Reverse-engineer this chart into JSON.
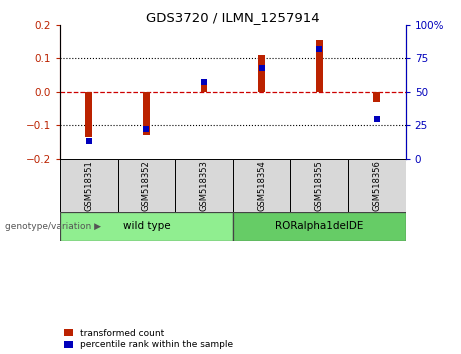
{
  "title": "GDS3720 / ILMN_1257914",
  "samples": [
    "GSM518351",
    "GSM518352",
    "GSM518353",
    "GSM518354",
    "GSM518355",
    "GSM518356"
  ],
  "transformed_count": [
    -0.135,
    -0.13,
    0.025,
    0.11,
    0.155,
    -0.03
  ],
  "percentile_rank": [
    13,
    22,
    57,
    68,
    82,
    30
  ],
  "groups": [
    {
      "label": "wild type",
      "indices": [
        0,
        1,
        2
      ],
      "color": "#90ee90"
    },
    {
      "label": "RORalpha1delDE",
      "indices": [
        3,
        4,
        5
      ],
      "color": "#66cc66"
    }
  ],
  "ylim_left": [
    -0.2,
    0.2
  ],
  "ylim_right": [
    0,
    100
  ],
  "yticks_left": [
    -0.2,
    -0.1,
    0.0,
    0.1,
    0.2
  ],
  "yticks_right": [
    0,
    25,
    50,
    75,
    100
  ],
  "bar_color_red": "#bb2200",
  "bar_color_blue": "#0000bb",
  "zero_line_color": "#cc0000",
  "label_red": "transformed count",
  "label_blue": "percentile rank within the sample",
  "genotype_label": "genotype/variation",
  "sample_bg_color": "#d8d8d8",
  "bar_width": 0.12
}
